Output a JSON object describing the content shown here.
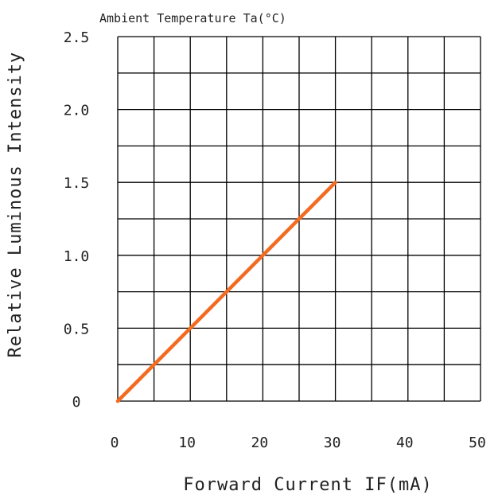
{
  "chart_data": {
    "type": "line",
    "title": "Ambient Temperature Ta(°C)",
    "xlabel": "Forward Current IF(mA)",
    "ylabel": "Relative Luminous Intensity",
    "xlim": [
      0,
      50
    ],
    "ylim": [
      0,
      2.5
    ],
    "x_ticks": [
      "0",
      "10",
      "20",
      "30",
      "40",
      "50"
    ],
    "y_ticks": [
      "0",
      "0.5",
      "1.0",
      "1.5",
      "2.0",
      "2.5"
    ],
    "grid": true,
    "series": [
      {
        "x": [
          0,
          30
        ],
        "y": [
          0,
          1.5
        ],
        "color": "#f26b21"
      }
    ],
    "colors": {
      "line": "#f26b21",
      "grid": "#000000",
      "text": "#222222"
    }
  }
}
